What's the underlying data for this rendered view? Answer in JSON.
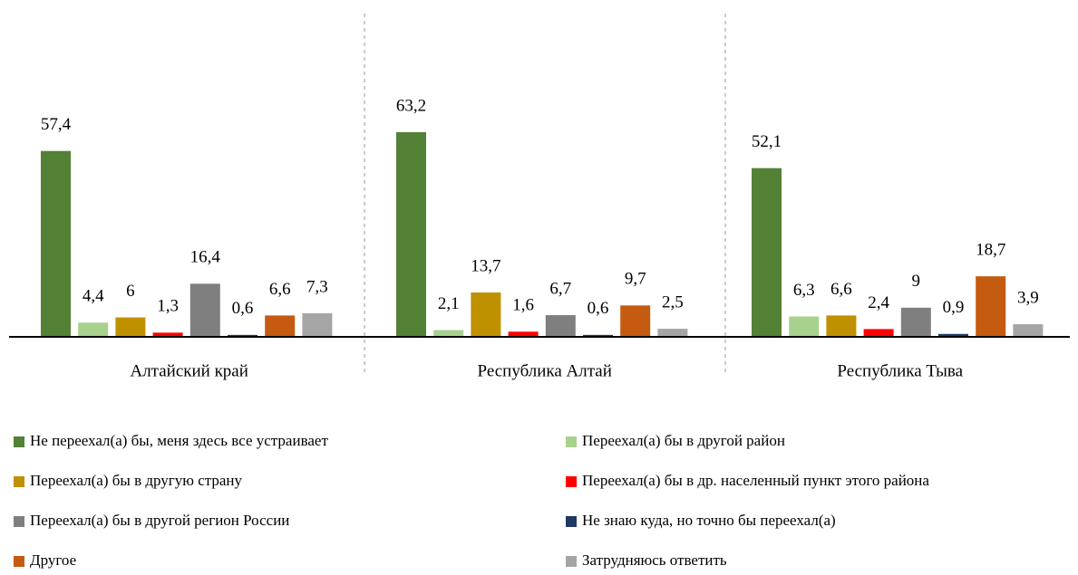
{
  "chart_data": {
    "type": "bar",
    "categories": [
      "Алтайский край",
      "Республика Алтай",
      "Республика Тыва"
    ],
    "series": [
      {
        "name": "Не переехал(а) бы, меня здесь все устраивает",
        "color": "#538135",
        "values": [
          57.4,
          63.2,
          52.1
        ],
        "value_labels": [
          "57,4",
          "63,2",
          "52,1"
        ]
      },
      {
        "name": "Переехал(а) бы в другой район",
        "color": "#a9d18e",
        "values": [
          4.4,
          2.1,
          6.3
        ],
        "value_labels": [
          "4,4",
          "2,1",
          "6,3"
        ]
      },
      {
        "name": "Переехал(а) бы в другую страну",
        "color": "#bf9000",
        "values": [
          6,
          13.7,
          6.6
        ],
        "value_labels": [
          "6",
          "13,7",
          "6,6"
        ]
      },
      {
        "name": "Переехал(а) бы в др. населенный пункт этого района",
        "color": "#ff0000",
        "values": [
          1.3,
          1.6,
          2.4
        ],
        "value_labels": [
          "1,3",
          "1,6",
          "2,4"
        ]
      },
      {
        "name": "Переехал(а) бы в другой регион России",
        "color": "#7f7f7f",
        "values": [
          16.4,
          6.7,
          9
        ],
        "value_labels": [
          "16,4",
          "6,7",
          "9"
        ]
      },
      {
        "name": "Не знаю куда, но точно бы переехал(а)",
        "color": "#1f3864",
        "values": [
          0.6,
          0.6,
          0.9
        ],
        "value_labels": [
          "0,6",
          "0,6",
          "0,9"
        ]
      },
      {
        "name": "Другое",
        "color": "#c55a11",
        "values": [
          6.6,
          9.7,
          18.7
        ],
        "value_labels": [
          "6,6",
          "9,7",
          "18,7"
        ]
      },
      {
        "name": "Затрудняюсь ответить",
        "color": "#a5a5a5",
        "values": [
          7.3,
          2.5,
          3.9
        ],
        "value_labels": [
          "7,3",
          "2,5",
          "3,9"
        ]
      }
    ]
  }
}
